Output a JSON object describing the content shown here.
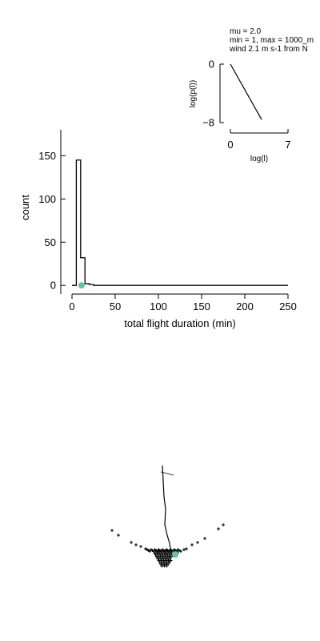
{
  "annotations": {
    "line1": "mu = 2.0",
    "line2": "min = 1, max = 1000_m",
    "line3": "wind 2.1 m s-1 from N"
  },
  "chart_data": [
    {
      "type": "histogram",
      "xlabel": "total flight duration (min)",
      "ylabel": "count",
      "xlim": [
        0,
        250
      ],
      "ylim": [
        -10,
        180
      ],
      "xticks": [
        0,
        50,
        100,
        150,
        200,
        250
      ],
      "yticks": [
        0,
        50,
        100,
        150
      ],
      "bins": [
        {
          "x0": 0,
          "x1": 5,
          "count": 0
        },
        {
          "x0": 5,
          "x1": 10,
          "count": 145
        },
        {
          "x0": 10,
          "x1": 15,
          "count": 32
        },
        {
          "x0": 15,
          "x1": 20,
          "count": 2
        },
        {
          "x0": 20,
          "x1": 25,
          "count": 1
        },
        {
          "x0": 25,
          "x1": 250,
          "count": 0
        }
      ],
      "marker": {
        "x": 11,
        "y": 0,
        "color": "#66c2a5"
      }
    },
    {
      "type": "line",
      "xlabel": "log(l)",
      "ylabel": "log(p(l))",
      "xlim": [
        0,
        7
      ],
      "ylim": [
        -8,
        0
      ],
      "xticks": [
        0,
        7
      ],
      "yticks": [
        0,
        -8
      ],
      "x": [
        0,
        3.8
      ],
      "y": [
        0,
        -7.6
      ]
    },
    {
      "type": "scatter",
      "trajectory_color": "#000000",
      "wind_vector_color": "#666666",
      "point_color": "#66c2a5"
    }
  ]
}
